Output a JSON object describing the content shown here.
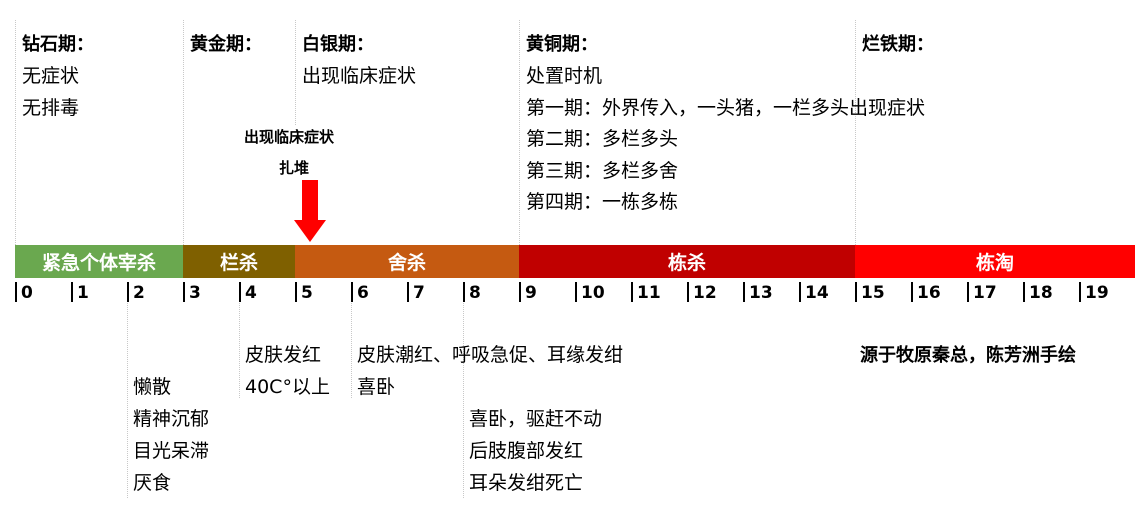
{
  "phases": [
    {
      "title": "钻石期：",
      "lines": [
        "无症状",
        "无排毒"
      ]
    },
    {
      "title": "黄金期："
    },
    {
      "title": "白银期：",
      "lines": [
        "出现临床症状"
      ]
    },
    {
      "title": "黄铜期：",
      "lines": [
        "处置时机",
        "第一期：外界传入，一头猪，一栏多头出现症状",
        "第二期：多栏多头",
        "第三期：多栏多舍",
        "第四期：一栋多栋"
      ]
    },
    {
      "title": "烂铁期："
    }
  ],
  "marker": {
    "line1": "出现临床症状",
    "line2": "扎堆"
  },
  "bands": [
    {
      "label": "紧急个体宰杀",
      "color": "#6aa84f"
    },
    {
      "label": "栏杀",
      "color": "#7f6000"
    },
    {
      "label": "舍杀",
      "color": "#c55a11"
    },
    {
      "label": "栋杀",
      "color": "#c00000"
    },
    {
      "label": "栋淘",
      "color": "#ff0000"
    }
  ],
  "ticks": [
    "0",
    "1",
    "2",
    "3",
    "4",
    "5",
    "6",
    "7",
    "8",
    "9",
    "10",
    "11",
    "12",
    "13",
    "14",
    "15",
    "16",
    "17",
    "18",
    "19"
  ],
  "symptoms": {
    "day2": [
      "懒散",
      "精神沉郁",
      "目光呆滞",
      "厌食"
    ],
    "day4": [
      "皮肤发红",
      "40C°以上"
    ],
    "day6": [
      "皮肤潮红、呼吸急促、耳缘发绀",
      "喜卧"
    ],
    "day8": [
      "喜卧，驱赶不动",
      "后肢腹部发红",
      "耳朵发绀死亡"
    ]
  },
  "credit": "源于牧原秦总，陈芳洲手绘",
  "colors": {
    "arrow": "#ff0000"
  }
}
